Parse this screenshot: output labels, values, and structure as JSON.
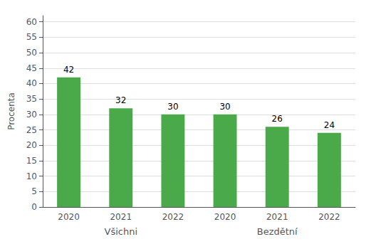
{
  "chart_data": {
    "type": "bar",
    "ylabel": "Procenta",
    "groups": [
      {
        "label": "Všichni",
        "categories": [
          "2020",
          "2021",
          "2022"
        ],
        "values": [
          42,
          32,
          30
        ]
      },
      {
        "label": "Bezdětní",
        "categories": [
          "2020",
          "2021",
          "2022"
        ],
        "values": [
          30,
          26,
          24
        ]
      }
    ],
    "color": "#4aaa4a",
    "ylim": [
      0,
      62
    ],
    "yticks": [
      0,
      5,
      10,
      15,
      20,
      25,
      30,
      35,
      40,
      45,
      50,
      55,
      60
    ],
    "grid": true,
    "data_labels": true
  }
}
